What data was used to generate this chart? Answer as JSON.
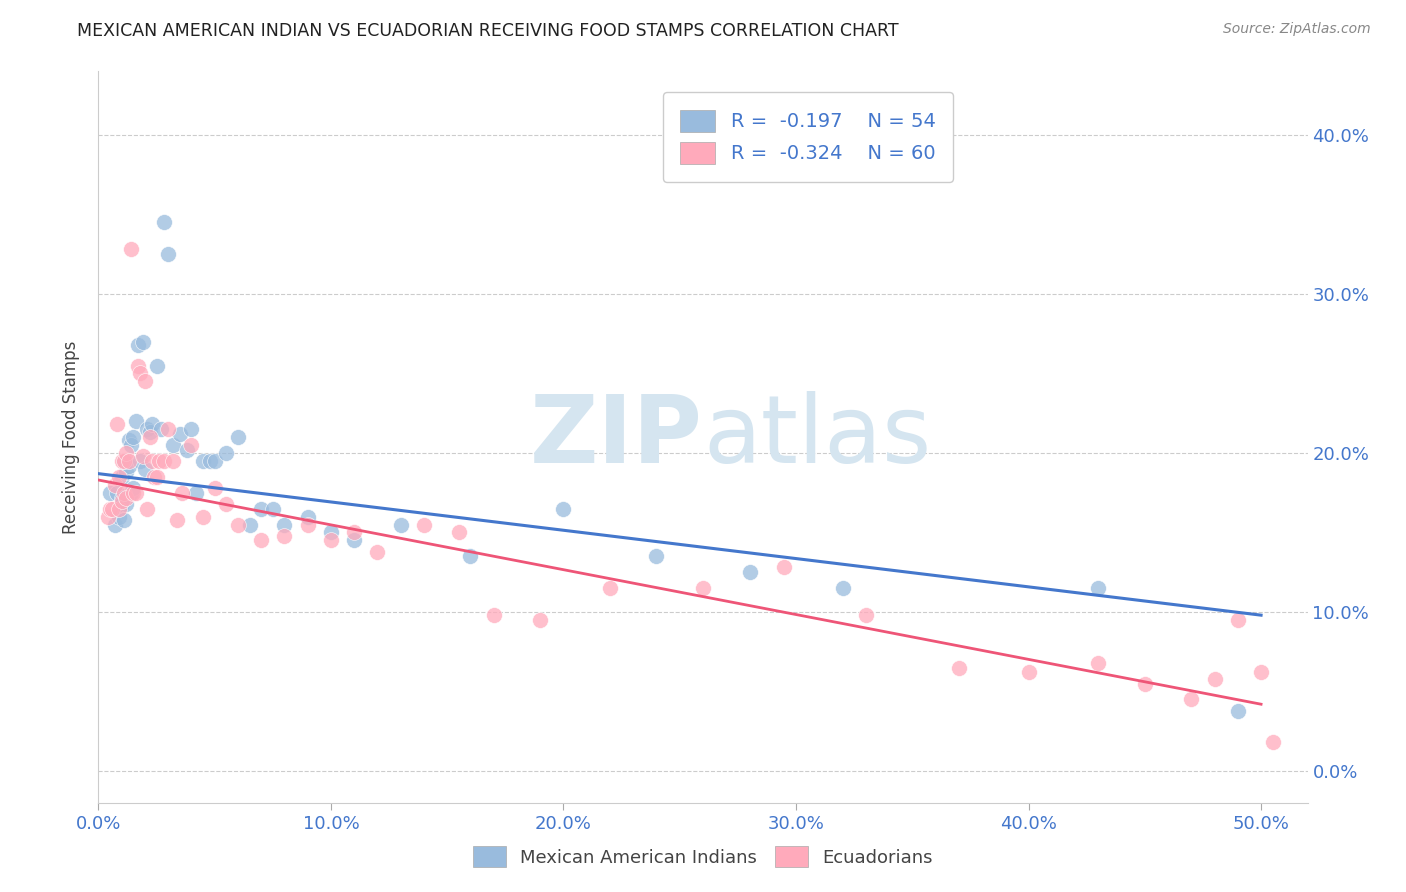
{
  "title": "MEXICAN AMERICAN INDIAN VS ECUADORIAN RECEIVING FOOD STAMPS CORRELATION CHART",
  "source": "Source: ZipAtlas.com",
  "ylabel": "Receiving Food Stamps",
  "xlim": [
    0.0,
    0.52
  ],
  "ylim": [
    -0.02,
    0.44
  ],
  "xtick_vals": [
    0.0,
    0.1,
    0.2,
    0.3,
    0.4,
    0.5
  ],
  "ytick_vals": [
    0.0,
    0.1,
    0.2,
    0.3,
    0.4
  ],
  "blue_R": -0.197,
  "blue_N": 54,
  "pink_R": -0.324,
  "pink_N": 60,
  "blue_color": "#99BBDD",
  "pink_color": "#FFAABB",
  "blue_line_color": "#4477CC",
  "pink_line_color": "#EE5577",
  "legend_text_color": "#4477CC",
  "watermark_zip": "ZIP",
  "watermark_atlas": "atlas",
  "watermark_color": "#D5E5F0",
  "legend_label_blue": "Mexican American Indians",
  "legend_label_pink": "Ecuadorians",
  "blue_x": [
    0.005,
    0.007,
    0.008,
    0.009,
    0.01,
    0.01,
    0.01,
    0.011,
    0.011,
    0.012,
    0.012,
    0.013,
    0.013,
    0.014,
    0.014,
    0.015,
    0.015,
    0.016,
    0.017,
    0.018,
    0.019,
    0.02,
    0.021,
    0.022,
    0.023,
    0.025,
    0.027,
    0.028,
    0.03,
    0.032,
    0.035,
    0.038,
    0.04,
    0.042,
    0.045,
    0.048,
    0.05,
    0.055,
    0.06,
    0.065,
    0.07,
    0.075,
    0.08,
    0.09,
    0.1,
    0.11,
    0.13,
    0.16,
    0.2,
    0.24,
    0.28,
    0.32,
    0.43,
    0.49
  ],
  "blue_y": [
    0.175,
    0.155,
    0.175,
    0.16,
    0.185,
    0.172,
    0.168,
    0.195,
    0.158,
    0.188,
    0.168,
    0.208,
    0.192,
    0.205,
    0.175,
    0.21,
    0.178,
    0.22,
    0.268,
    0.195,
    0.27,
    0.19,
    0.215,
    0.213,
    0.218,
    0.255,
    0.215,
    0.345,
    0.325,
    0.205,
    0.212,
    0.202,
    0.215,
    0.175,
    0.195,
    0.195,
    0.195,
    0.2,
    0.21,
    0.155,
    0.165,
    0.165,
    0.155,
    0.16,
    0.15,
    0.145,
    0.155,
    0.135,
    0.165,
    0.135,
    0.125,
    0.115,
    0.115,
    0.038
  ],
  "pink_x": [
    0.004,
    0.005,
    0.006,
    0.007,
    0.008,
    0.009,
    0.009,
    0.01,
    0.01,
    0.011,
    0.011,
    0.012,
    0.012,
    0.013,
    0.014,
    0.015,
    0.016,
    0.017,
    0.018,
    0.019,
    0.02,
    0.021,
    0.022,
    0.023,
    0.024,
    0.025,
    0.026,
    0.028,
    0.03,
    0.032,
    0.034,
    0.036,
    0.04,
    0.045,
    0.05,
    0.055,
    0.06,
    0.07,
    0.08,
    0.09,
    0.1,
    0.11,
    0.12,
    0.14,
    0.155,
    0.17,
    0.19,
    0.22,
    0.26,
    0.295,
    0.33,
    0.37,
    0.4,
    0.43,
    0.45,
    0.47,
    0.48,
    0.49,
    0.5,
    0.505
  ],
  "pink_y": [
    0.16,
    0.165,
    0.165,
    0.18,
    0.218,
    0.185,
    0.165,
    0.195,
    0.17,
    0.195,
    0.175,
    0.2,
    0.172,
    0.195,
    0.328,
    0.175,
    0.175,
    0.255,
    0.25,
    0.198,
    0.245,
    0.165,
    0.21,
    0.195,
    0.185,
    0.185,
    0.195,
    0.195,
    0.215,
    0.195,
    0.158,
    0.175,
    0.205,
    0.16,
    0.178,
    0.168,
    0.155,
    0.145,
    0.148,
    0.155,
    0.145,
    0.15,
    0.138,
    0.155,
    0.15,
    0.098,
    0.095,
    0.115,
    0.115,
    0.128,
    0.098,
    0.065,
    0.062,
    0.068,
    0.055,
    0.045,
    0.058,
    0.095,
    0.062,
    0.018
  ]
}
